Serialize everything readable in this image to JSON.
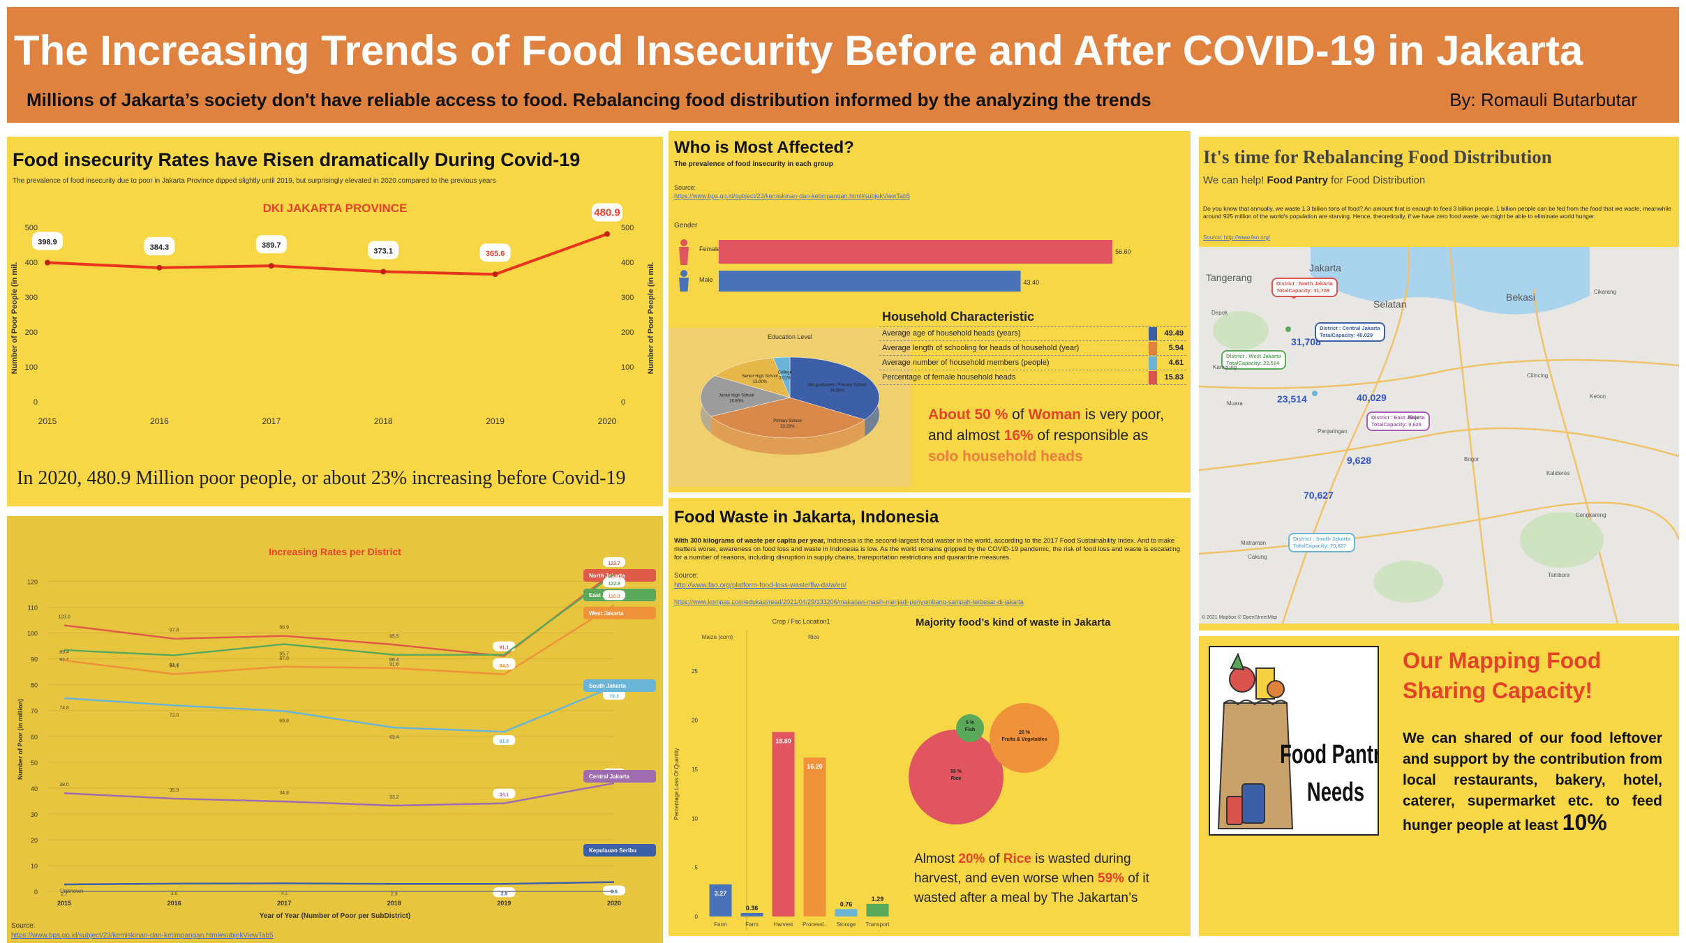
{
  "header": {
    "title": "The Increasing Trends of Food Insecurity Before and After COVID-19 in Jakarta",
    "subtitle": "Millions of Jakarta’s society don't have reliable access to food. Rebalancing food distribution informed by the analyzing the trends",
    "byline": "By: Romauli Butarbutar"
  },
  "panel1": {
    "title": "Food insecurity Rates have Risen dramatically During Covid-19",
    "subtitle": "The prevalence of food insecurity due to poor in Jakarta Province dipped slightly until 2019, but surprisingly elevated in 2020 compared to the previous years",
    "conclusion": "In 2020, 480.9 Million poor people, or about 23% increasing before Covid-19"
  },
  "panel2": {
    "source_label": "Source:",
    "source_url": "https://www.bps.go.id/subject/23/kemiskinan-dan-ketimpangan.html#subjekViewTab5"
  },
  "panel3": {
    "title": "Who is Most Affected?",
    "subtitle": "The prevalence of food insecurity in each group",
    "source_label": "Source:",
    "source_url": "https://www.bps.go.id/subject/23/kemiskinan-dan-ketimpangan.html#subjekViewTab5",
    "household_title": "Household Characteristic",
    "household": [
      {
        "label": "Average age of household heads (years)",
        "value": "49.49",
        "color": "#3c5fa8"
      },
      {
        "label": "Average length of schooling for heads of household (year)",
        "value": "5.94",
        "color": "#e0823f"
      },
      {
        "label": "Average number of household members (people)",
        "value": "4.61",
        "color": "#6ab4d8"
      },
      {
        "label": "Percentage of female household heads",
        "value": "15.83",
        "color": "#d9534f"
      }
    ],
    "callout": {
      "p1": "About 50 %",
      "p2": " of ",
      "p3": "Woman",
      "p4": " is very poor, and almost ",
      "p5": "16%",
      "p6": " of responsible as ",
      "p7": "solo household heads"
    }
  },
  "panel4": {
    "title": "Food Waste in Jakarta, Indonesia",
    "body_bold": "With 300 kilograms of waste per capita per year,",
    "body": " Indonesia is the second-largest food waster in the world, according to the 2017 Food Sustainability Index. And to make matters worse, awareness on food loss and waste in Indonesia is low. As the world remains gripped by the COVID-19 pandemic, the risk of food loss and waste is escalating for a number of reasons, including disruption in supply chains, transportation restrictions and quarantine measures.",
    "source_label": "Source:",
    "source_url1": "http://www.fao.org/platform-food-loss-waste/flw-data/en/",
    "source_url2": "https://www.kompas.com/edukasi/read/2021/04/29/133206/makanan-masih-menjadi-penyumbang-sampah-terbesar-di-jakarta",
    "bubble_title": "Majority food’s kind of waste in Jakarta",
    "callout": {
      "p1": "Almost ",
      "p2": "20%",
      "p3": " of ",
      "p4": "Rice",
      "p5": " is wasted during harvest, and even worse when ",
      "p6": "59%",
      "p7": " of it wasted after a meal by The Jakartan’s"
    }
  },
  "panel5": {
    "title": "It's time for Rebalancing Food Distribution",
    "sub1": "We can help! ",
    "sub2": "Food Pantry",
    "sub3": " for Food Distribution",
    "body": "Do you know that annually, we waste 1.3 billion tons of food? An amount that is enough to feed 3 billion people. 1 billion people can be fed from the food that we waste, meanwhile around 925 million of the world's population are starving. Hence, theoretically, if we have zero food waste, we might be able to eliminate world hunger.",
    "source": "Source: http://www.fao.org/",
    "map_copyright": "© 2021 Mapbox © OpenStreetMap",
    "districts": [
      {
        "name": "District : North Jakarta",
        "capacity": "TotalCapacity: 31,708",
        "value": "31,708",
        "color": "#d9534f"
      },
      {
        "name": "District : Central Jakarta",
        "capacity": "TotalCapacity: 40,029",
        "value": "40,029",
        "color": "#3c5fa8"
      },
      {
        "name": "District : West Jakarta",
        "capacity": "TotalCapacity: 23,514",
        "value": "23,514",
        "color": "#5aa85a"
      },
      {
        "name": "District : East Jakarta",
        "capacity": "TotalCapacity: 9,628",
        "value": "9,628",
        "color": "#a65fb0"
      },
      {
        "name": "District : South Jakarta",
        "capacity": "TotalCapacity: 70,627",
        "value": "70,627",
        "color": "#6ab4d8"
      }
    ],
    "places": [
      "Jakarta",
      "Tangerang",
      "Selatan",
      "Bekasi",
      "Cikarang",
      "Depok",
      "Kampung",
      "Muara",
      "Penjaringan",
      "Koja",
      "Cilincing",
      "Kebon",
      "Kalideres",
      "Cengkareng",
      "Tambora",
      "Matraman",
      "Cakung",
      "Bogor"
    ]
  },
  "panel6": {
    "title": "Our Mapping Food Sharing Capacity!",
    "body": "We can shared of our food leftover and support by the contribution from local restaurants, bakery, hotel, caterer, supermarket etc. to feed hunger people at least ",
    "body_big": "10%",
    "image_text1": "Food Pantry",
    "image_text2": "Needs"
  },
  "chart_data": [
    {
      "type": "line",
      "title": "DKI JAKARTA PROVINCE",
      "x": [
        "2015",
        "2016",
        "2017",
        "2018",
        "2019",
        "2020"
      ],
      "series": [
        {
          "values": [
            398.9,
            384.3,
            389.7,
            373.1,
            365.6,
            480.9
          ]
        }
      ],
      "data_labels": [
        "398.9",
        "384.3",
        "389.7",
        "373.1",
        "365.6",
        "480.9"
      ],
      "ylabel": "Number of Poor People (in mil.",
      "ylim": [
        0,
        500
      ],
      "yticks": [
        "0",
        "100",
        "200",
        "300",
        "400",
        "500"
      ],
      "color": "#e8341c"
    },
    {
      "type": "line",
      "title": "Increasing Rates per District",
      "x": [
        "2015",
        "2016",
        "2017",
        "2018",
        "2019",
        "2020"
      ],
      "ylabel": "Number of Poor (in million)",
      "xlabel": "Year of Year (Number of Poor per SubDistrict)",
      "ylim": [
        0,
        125
      ],
      "yticks": [
        "0",
        "10",
        "20",
        "30",
        "40",
        "50",
        "60",
        "70",
        "80",
        "90",
        "100",
        "110",
        "120"
      ],
      "series": [
        {
          "name": "North Jakarta",
          "color": "#e05a4a",
          "values": [
            103.0,
            97.8,
            98.9,
            95.5,
            91.1,
            123.7
          ],
          "labels": [
            "103.0",
            "97.8",
            "98.9",
            "95.5",
            "91.1",
            "123.7"
          ]
        },
        {
          "name": "East Jakarta",
          "color": "#5aa85a",
          "values": [
            93.4,
            91.4,
            95.7,
            91.6,
            91.6,
            122.8
          ],
          "labels": [
            "93.4",
            "91.4",
            "95.7",
            "91.6",
            "91.6",
            "122.8"
          ]
        },
        {
          "name": "West Jakarta",
          "color": "#f0923a",
          "values": [
            89.4,
            84.1,
            87.0,
            86.4,
            84.0,
            110.9
          ],
          "labels": [
            "89.4",
            "84.1",
            "87.0",
            "86.4",
            "84.0",
            "110.9"
          ]
        },
        {
          "name": "South Jakarta",
          "color": "#6ab4d8",
          "values": [
            74.8,
            72.0,
            69.8,
            63.4,
            61.8,
            79.3
          ],
          "labels": [
            "74.8",
            "72.0",
            "69.8",
            "63.4",
            "61.8",
            "79.3"
          ]
        },
        {
          "name": "Central Jakarta",
          "color": "#a06cb0",
          "values": [
            38.0,
            35.9,
            34.8,
            33.2,
            34.1,
            41.9
          ],
          "labels": [
            "38.0",
            "35.9",
            "34.8",
            "33.2",
            "34.1",
            "41.9"
          ]
        },
        {
          "name": "Kepulauan Seribu",
          "color": "#3c5fa8",
          "values": [
            2.7,
            3.0,
            3.1,
            2.9,
            2.9,
            3.6
          ],
          "labels": [
            "2.7",
            "3.0",
            "3.1",
            "2.9",
            "2.9",
            "3.6"
          ]
        },
        {
          "name": "Unknown",
          "color": "#777777",
          "values": [
            0,
            0,
            0,
            0,
            0,
            0
          ],
          "labels": []
        }
      ]
    },
    {
      "type": "bar",
      "title": "Gender",
      "categories": [
        "Female",
        "Male"
      ],
      "values": [
        56.6,
        43.4
      ],
      "labels": [
        "56.60",
        "43.40"
      ],
      "colors": [
        "#e05560",
        "#4a72b8"
      ]
    },
    {
      "type": "pie",
      "title": "Education Level",
      "labels": [
        "Not graduated / Primary School",
        "Primary School",
        "Junior High School",
        "Senior High School",
        "College"
      ],
      "slice_labels": [
        "34.36%",
        "33.23%",
        "16.86%",
        "13.00%",
        "3.01%"
      ],
      "values": [
        34.36,
        33.23,
        16.86,
        13.0,
        3.01
      ],
      "colors": [
        "#3c5fa8",
        "#d98a4a",
        "#9c9c9c",
        "#e6b84a",
        "#6ab4d8"
      ]
    },
    {
      "type": "bar",
      "title": "Crop / Fsc Location1",
      "group_labels": [
        "Maize (corn)",
        "Rice"
      ],
      "categories": [
        "Farm",
        "Farm",
        "Harvest",
        "Processi..",
        "Storage",
        "Transport"
      ],
      "values": [
        3.27,
        0.36,
        18.8,
        16.2,
        0.76,
        1.29
      ],
      "labels": [
        "3.27",
        "0.36",
        "18.80",
        "16.20",
        "0.76",
        "1.29"
      ],
      "colors": [
        "#4a72b8",
        "#4a72b8",
        "#e05560",
        "#f0923a",
        "#6ab4d8",
        "#5aa85a"
      ],
      "ylabel": "Percentage Loss Of Quantity",
      "ylim": [
        0,
        27
      ],
      "yticks": [
        "0",
        "5",
        "10",
        "15",
        "20",
        "25"
      ]
    },
    {
      "type": "scatter",
      "title": "Majority food’s kind of waste in Jakarta",
      "categories": [
        "Rice",
        "Fruits & Vegetables",
        "Fish"
      ],
      "values": [
        59,
        20,
        5
      ],
      "labels": [
        "59 %",
        "20 %",
        "5 %"
      ],
      "colors": [
        "#e05560",
        "#f0923a",
        "#5aa85a"
      ]
    }
  ]
}
